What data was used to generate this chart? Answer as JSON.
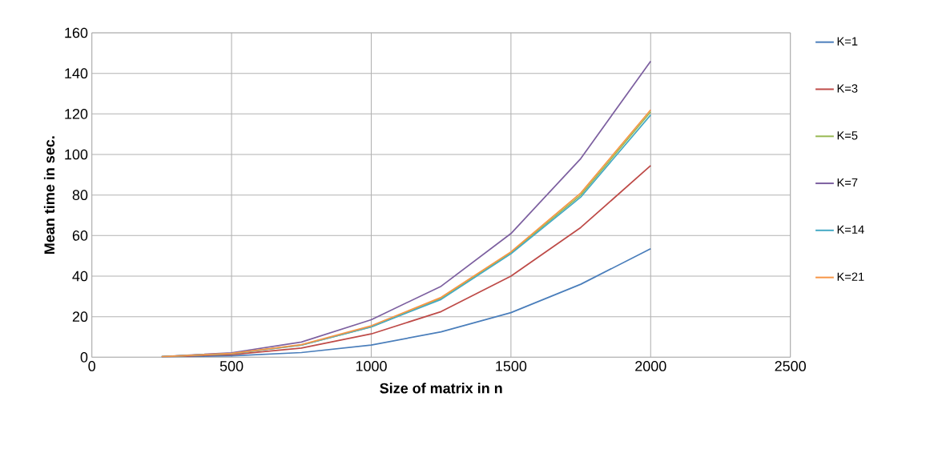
{
  "chart_data": {
    "type": "line",
    "xlabel": "Size of matrix in n",
    "ylabel": "Mean time in sec.",
    "x": [
      250,
      500,
      750,
      1000,
      1250,
      1500,
      1750,
      2000
    ],
    "series": [
      {
        "name": "K=1",
        "color": "#4a7ebb",
        "values": [
          0.1,
          0.7,
          2.3,
          6,
          12.5,
          22,
          36,
          53.5
        ]
      },
      {
        "name": "K=3",
        "color": "#be4b48",
        "values": [
          0.2,
          1.3,
          4.5,
          11.5,
          22.5,
          40,
          64,
          94.5
        ]
      },
      {
        "name": "K=5",
        "color": "#98b954",
        "values": [
          0.3,
          1.8,
          6,
          15,
          29,
          51.5,
          80,
          121
        ]
      },
      {
        "name": "K=7",
        "color": "#7d60a0",
        "values": [
          0.3,
          2.2,
          7.5,
          18.5,
          35,
          61,
          98,
          146
        ]
      },
      {
        "name": "K=14",
        "color": "#46aac5",
        "values": [
          0.3,
          1.8,
          6,
          15,
          28.5,
          51,
          79,
          119.5
        ]
      },
      {
        "name": "K=21",
        "color": "#f79646",
        "values": [
          0.3,
          1.9,
          6.2,
          15.5,
          29.5,
          52,
          81,
          122
        ]
      }
    ],
    "xlim": [
      0,
      2500
    ],
    "xticks": [
      0,
      500,
      1000,
      1500,
      2000,
      2500
    ],
    "ylim": [
      0,
      160
    ],
    "yticks": [
      0,
      20,
      40,
      60,
      80,
      100,
      120,
      140,
      160
    ],
    "grid": true,
    "legend": "right",
    "marker": "none",
    "line_style": "solid"
  }
}
